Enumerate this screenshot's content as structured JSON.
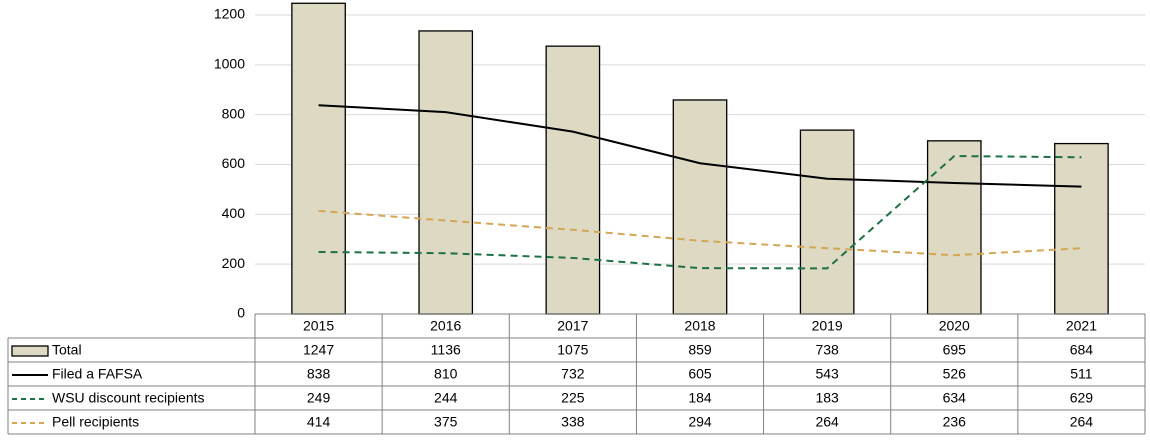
{
  "chart_data": {
    "type": "bar",
    "categories": [
      "2015",
      "2016",
      "2017",
      "2018",
      "2019",
      "2020",
      "2021"
    ],
    "series": [
      {
        "name": "Total",
        "type": "bar",
        "color": "#ddd9c3",
        "values": [
          1247,
          1136,
          1075,
          859,
          738,
          695,
          684
        ]
      },
      {
        "name": "Filed a FAFSA",
        "type": "line",
        "color": "#000000",
        "dash": false,
        "values": [
          838,
          810,
          732,
          605,
          543,
          526,
          511
        ]
      },
      {
        "name": "WSU discount recipients",
        "type": "line",
        "color": "#1e7145",
        "dash": true,
        "values": [
          249,
          244,
          225,
          184,
          183,
          634,
          629
        ]
      },
      {
        "name": "Pell recipients",
        "type": "line",
        "color": "#d4a656",
        "dash": true,
        "values": [
          414,
          375,
          338,
          294,
          264,
          236,
          264
        ]
      }
    ],
    "ylim": [
      0,
      1200
    ],
    "yticks": [
      0,
      200,
      400,
      600,
      800,
      1000,
      1200
    ],
    "grid": true,
    "data_table": true
  }
}
